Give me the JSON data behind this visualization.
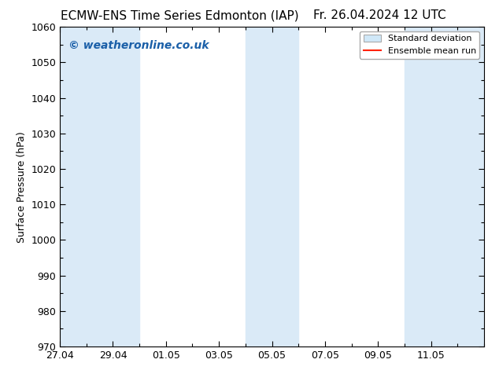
{
  "title_left": "ECMW-ENS Time Series Edmonton (IAP)",
  "title_right": "Fr. 26.04.2024 12 UTC",
  "ylabel": "Surface Pressure (hPa)",
  "ylim": [
    970,
    1060
  ],
  "ytick_interval": 10,
  "watermark": "© weatheronline.co.uk",
  "watermark_color": "#1a5fa8",
  "background_color": "#ffffff",
  "plot_bg_color": "#ffffff",
  "shaded_band_color": "#daeaf7",
  "shaded_ranges": [
    [
      0,
      1
    ],
    [
      1,
      3
    ],
    [
      7,
      9
    ],
    [
      13,
      16
    ]
  ],
  "x_labels": [
    "27.04",
    "29.04",
    "01.05",
    "03.05",
    "05.05",
    "07.05",
    "09.05",
    "11.05"
  ],
  "x_tick_positions": [
    0,
    2,
    4,
    6,
    8,
    10,
    12,
    14
  ],
  "xlim": [
    0,
    16
  ],
  "legend_std_label": "Standard deviation",
  "legend_mean_label": "Ensemble mean run",
  "legend_std_color": "#d0e8f8",
  "legend_mean_color": "#ff2200",
  "title_fontsize": 11,
  "axis_fontsize": 9,
  "watermark_fontsize": 10
}
